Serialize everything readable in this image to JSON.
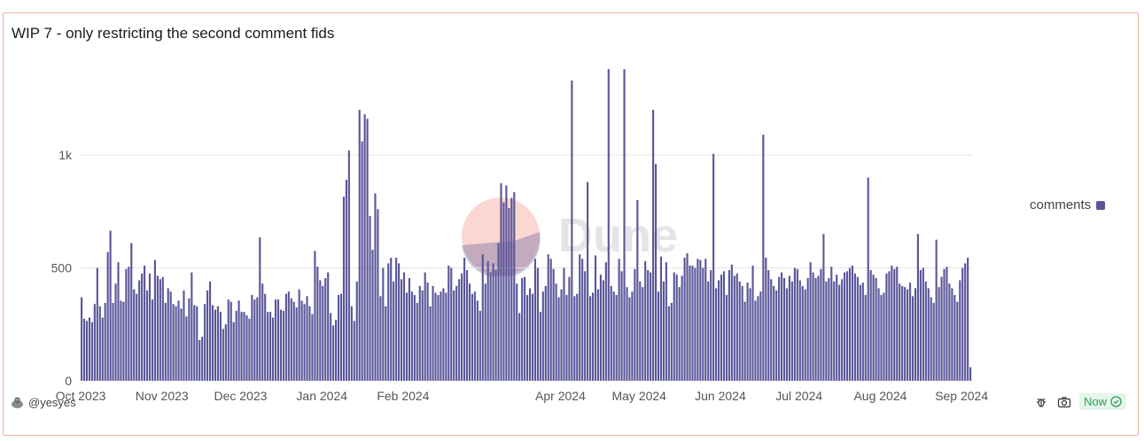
{
  "header": {
    "title": "WIP 7 - only restricting the second comment fids"
  },
  "legend": {
    "label": "comments"
  },
  "footer": {
    "author": "@yesyes",
    "status": "Now"
  },
  "watermark": {
    "text": "Dune"
  },
  "colors": {
    "bar": "#5b5699",
    "border": "#eab5a8",
    "grid": "#e4e4e4",
    "badge_text": "#2f9e57"
  },
  "icons": [
    "user-avatar-icon",
    "bug-icon",
    "camera-icon",
    "check-circle-icon"
  ],
  "chart_data": {
    "type": "bar",
    "title": "WIP 7 - only restricting the second comment fids",
    "xlabel": "",
    "ylabel": "",
    "ylim": [
      0,
      1400
    ],
    "yticks": [
      0,
      500,
      1000
    ],
    "ytick_labels": [
      "0",
      "500",
      "1k"
    ],
    "x_range": [
      "2023-10-01",
      "2024-09-05"
    ],
    "xtick_labels": [
      "Oct 2023",
      "Nov 2023",
      "Dec 2023",
      "Jan 2024",
      "Feb 2024",
      "Apr 2024",
      "May 2024",
      "Jun 2024",
      "Jul 2024",
      "Aug 2024",
      "Sep 2024"
    ],
    "xtick_dates": [
      "2023-10-01",
      "2023-11-01",
      "2023-12-01",
      "2024-01-01",
      "2024-02-01",
      "2024-04-01",
      "2024-05-01",
      "2024-06-01",
      "2024-07-01",
      "2024-08-01",
      "2024-09-01"
    ],
    "grid": true,
    "legend_position": "right",
    "series": [
      {
        "name": "comments",
        "start_date": "2023-10-01",
        "values": [
          370,
          275,
          265,
          280,
          260,
          340,
          500,
          330,
          280,
          345,
          570,
          665,
          345,
          430,
          525,
          355,
          350,
          495,
          505,
          610,
          405,
          385,
          445,
          475,
          510,
          400,
          475,
          360,
          535,
          465,
          450,
          460,
          345,
          410,
          395,
          340,
          330,
          355,
          320,
          400,
          285,
          365,
          480,
          335,
          330,
          180,
          195,
          340,
          400,
          440,
          335,
          315,
          330,
          305,
          230,
          250,
          360,
          350,
          260,
          310,
          355,
          305,
          305,
          290,
          275,
          380,
          360,
          370,
          635,
          430,
          385,
          305,
          305,
          280,
          360,
          360,
          315,
          310,
          385,
          395,
          365,
          350,
          325,
          405,
          355,
          340,
          375,
          330,
          295,
          575,
          505,
          445,
          420,
          455,
          480,
          300,
          245,
          270,
          380,
          385,
          430,
          330,
          395,
          330,
          265,
          440,
          390,
          390,
          365,
          275,
          430,
          355,
          290,
          385,
          375,
          500,
          330,
          520,
          545,
          440,
          545,
          520,
          450,
          480,
          390,
          455,
          395,
          380,
          345,
          420,
          400,
          480,
          435,
          330,
          420,
          390,
          380,
          395,
          410,
          390,
          510,
          500,
          400,
          420,
          450,
          475,
          545,
          490,
          430,
          385,
          395,
          355,
          310,
          560,
          430,
          530,
          480,
          520,
          490,
          610,
          435,
          445,
          400,
          395,
          420,
          345,
          430,
          300,
          455,
          460,
          380,
          410,
          385,
          540,
          500,
          305,
          395,
          420,
          560,
          540,
          495,
          430,
          370,
          405,
          500,
          380,
          460,
          485,
          375,
          385,
          560,
          540,
          485,
          550,
          375,
          390,
          555,
          405,
          470,
          445,
          525,
          470,
          420,
          395,
          380,
          540,
          485,
          440,
          415,
          370,
          395,
          495,
          540,
          440,
          415,
          530,
          490,
          480,
          475,
          545,
          395,
          550,
          440,
          525,
          330,
          345,
          480,
          470,
          415,
          465,
          545,
          565,
          510,
          510,
          500,
          540,
          535,
          500,
          540,
          440,
          490,
          510,
          410,
          445,
          470,
          485,
          380,
          490,
          515,
          465,
          475,
          440,
          420,
          350,
          435,
          410,
          510,
          355,
          375,
          395,
          440,
          545,
          490,
          450,
          420,
          400,
          460,
          480,
          455,
          410,
          465,
          440,
          500,
          495,
          445,
          420,
          405,
          455,
          525,
          480,
          455,
          465,
          495,
          465,
          440,
          455,
          505,
          440,
          470,
          425,
          450,
          480,
          485,
          500,
          510,
          475,
          460,
          425,
          435,
          380,
          440,
          490,
          470,
          455,
          410,
          380,
          390,
          475,
          485,
          510,
          495,
          505,
          430,
          420,
          415,
          405,
          435,
          375,
          410,
          460,
          490,
          500,
          440,
          410,
          370,
          345,
          395,
          415,
          460,
          495,
          505,
          430,
          410,
          380,
          350,
          445,
          500,
          520,
          545,
          60
        ],
        "overrides": {
          "106": 1200,
          "107": 1060,
          "108": 1180,
          "109": 1160,
          "100": 815,
          "101": 890,
          "102": 1020,
          "110": 730,
          "111": 580,
          "112": 830,
          "113": 760,
          "160": 875,
          "161": 790,
          "162": 865,
          "163": 765,
          "164": 810,
          "165": 835,
          "187": 1330,
          "201": 1380,
          "207": 1380,
          "193": 880,
          "212": 800,
          "218": 1200,
          "219": 960,
          "241": 1005,
          "260": 1090,
          "283": 650,
          "300": 900,
          "319": 650,
          "326": 625
        }
      }
    ]
  }
}
